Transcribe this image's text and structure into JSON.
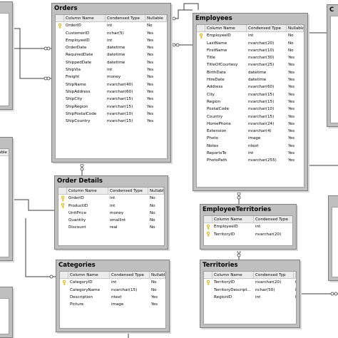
{
  "columns_header": {
    "name": "Column Name",
    "type": "Condensed Type",
    "nullable": "Nullable"
  },
  "partial_header": {
    "nullable": "llable"
  },
  "tables": {
    "orders": {
      "title": "Orders",
      "rows": [
        {
          "name": "OrderID",
          "type": "int",
          "nullable": "No",
          "pk": true
        },
        {
          "name": "CustomerID",
          "type": "nchar(5)",
          "nullable": "Yes",
          "pk": false
        },
        {
          "name": "EmployeeID",
          "type": "int",
          "nullable": "Yes",
          "pk": false
        },
        {
          "name": "OrderDate",
          "type": "datetime",
          "nullable": "Yes",
          "pk": false
        },
        {
          "name": "RequiredDate",
          "type": "datetime",
          "nullable": "Yes",
          "pk": false
        },
        {
          "name": "ShippedDate",
          "type": "datetime",
          "nullable": "Yes",
          "pk": false
        },
        {
          "name": "ShipVia",
          "type": "int",
          "nullable": "Yes",
          "pk": false
        },
        {
          "name": "Freight",
          "type": "money",
          "nullable": "Yes",
          "pk": false
        },
        {
          "name": "ShipName",
          "type": "nvarchar(40)",
          "nullable": "Yes",
          "pk": false
        },
        {
          "name": "ShipAddress",
          "type": "nvarchar(60)",
          "nullable": "Yes",
          "pk": false
        },
        {
          "name": "ShipCity",
          "type": "nvarchar(15)",
          "nullable": "Yes",
          "pk": false
        },
        {
          "name": "ShipRegion",
          "type": "nvarchar(15)",
          "nullable": "Yes",
          "pk": false
        },
        {
          "name": "ShipPostalCode",
          "type": "nvarchar(10)",
          "nullable": "Yes",
          "pk": false
        },
        {
          "name": "ShipCountry",
          "type": "nvarchar(15)",
          "nullable": "Yes",
          "pk": false
        }
      ]
    },
    "employees": {
      "title": "Employees",
      "rows": [
        {
          "name": "EmployeeID",
          "type": "int",
          "nullable": "No",
          "pk": true
        },
        {
          "name": "LastName",
          "type": "nvarchar(20)",
          "nullable": "No",
          "pk": false
        },
        {
          "name": "FirstName",
          "type": "nvarchar(10)",
          "nullable": "No",
          "pk": false
        },
        {
          "name": "Title",
          "type": "nvarchar(30)",
          "nullable": "Yes",
          "pk": false
        },
        {
          "name": "TitleOfCourtesy",
          "type": "nvarchar(25)",
          "nullable": "Yes",
          "pk": false
        },
        {
          "name": "BirthDate",
          "type": "datetime",
          "nullable": "Yes",
          "pk": false
        },
        {
          "name": "HireDate",
          "type": "datetime",
          "nullable": "Yes",
          "pk": false
        },
        {
          "name": "Address",
          "type": "nvarchar(60)",
          "nullable": "Yes",
          "pk": false
        },
        {
          "name": "City",
          "type": "nvarchar(15)",
          "nullable": "Yes",
          "pk": false
        },
        {
          "name": "Region",
          "type": "nvarchar(15)",
          "nullable": "Yes",
          "pk": false
        },
        {
          "name": "PostalCode",
          "type": "nvarchar(10)",
          "nullable": "Yes",
          "pk": false
        },
        {
          "name": "Country",
          "type": "nvarchar(15)",
          "nullable": "Yes",
          "pk": false
        },
        {
          "name": "HomePhone",
          "type": "nvarchar(24)",
          "nullable": "Yes",
          "pk": false
        },
        {
          "name": "Extension",
          "type": "nvarchar(4)",
          "nullable": "Yes",
          "pk": false
        },
        {
          "name": "Photo",
          "type": "image",
          "nullable": "Yes",
          "pk": false
        },
        {
          "name": "Notes",
          "type": "ntext",
          "nullable": "Yes",
          "pk": false
        },
        {
          "name": "ReportsTo",
          "type": "int",
          "nullable": "Yes",
          "pk": false
        },
        {
          "name": "PhotoPath",
          "type": "nvarchar(255)",
          "nullable": "Yes",
          "pk": false
        }
      ]
    },
    "order_details": {
      "title": "Order Details",
      "rows": [
        {
          "name": "OrderID",
          "type": "int",
          "nullable": "No",
          "pk": true
        },
        {
          "name": "ProductID",
          "type": "int",
          "nullable": "No",
          "pk": true
        },
        {
          "name": "UnitPrice",
          "type": "money",
          "nullable": "No",
          "pk": false
        },
        {
          "name": "Quantity",
          "type": "smallint",
          "nullable": "No",
          "pk": false
        },
        {
          "name": "Discount",
          "type": "real",
          "nullable": "No",
          "pk": false
        }
      ]
    },
    "employee_territories": {
      "title": "EmployeeTerritories",
      "rows": [
        {
          "name": "EmployeeID",
          "type": "int",
          "nullable": "No",
          "pk": true
        },
        {
          "name": "TerritoryID",
          "type": "nvarchar(20)",
          "nullable": "No",
          "pk": true
        }
      ]
    },
    "categories": {
      "title": "Categories",
      "rows": [
        {
          "name": "CategoryID",
          "type": "int",
          "nullable": "No",
          "pk": true
        },
        {
          "name": "CategoryName",
          "type": "nvarchar(15)",
          "nullable": "No",
          "pk": false
        },
        {
          "name": "Description",
          "type": "ntext",
          "nullable": "Yes",
          "pk": false
        },
        {
          "name": "Picture",
          "type": "image",
          "nullable": "Yes",
          "pk": false
        }
      ]
    },
    "territories": {
      "title": "Territories",
      "header_type": "Condensed Typ",
      "header_nullable": "Nul",
      "rows": [
        {
          "name": "TerritoryID",
          "type": "nvarchar(20)",
          "nullable": "No",
          "pk": true
        },
        {
          "name": "TerritoryDescript...",
          "type": "nchar(50)",
          "nullable": "No",
          "pk": false
        },
        {
          "name": "RegionID",
          "type": "int",
          "nullable": "No",
          "pk": false
        }
      ]
    }
  },
  "colors": {
    "table_frame": "#bfbfbf",
    "grid_bg": "#ffffff",
    "line": "#3c3c3c",
    "key": "#d9b000"
  }
}
